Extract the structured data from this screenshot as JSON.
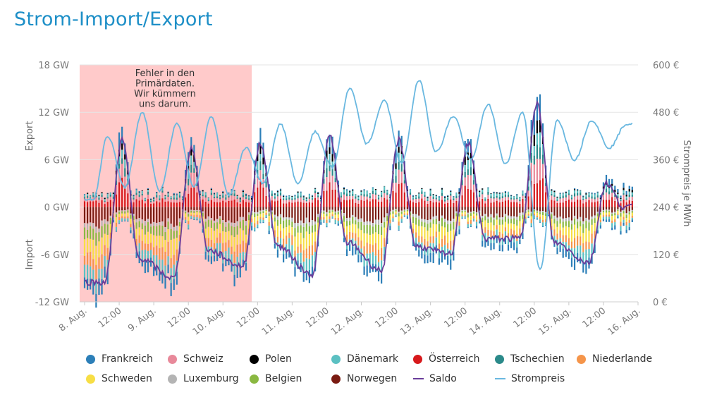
{
  "title": "Strom-Import/Export",
  "chart_data": {
    "type": "bar",
    "title": "Strom-Import/Export",
    "ylabel_top": "Export",
    "ylabel_bottom": "Import",
    "ylabel_right": "Strompreis je MWh",
    "ylim_left": [
      -12,
      18
    ],
    "ylim_right": [
      0,
      600
    ],
    "left_ticks": [
      "18 GW",
      "12 GW",
      "6 GW",
      "0 GW",
      "-6 GW",
      "-12 GW"
    ],
    "left_tick_values": [
      18,
      12,
      6,
      0,
      -6,
      -12
    ],
    "right_ticks": [
      "600 €",
      "480 €",
      "360 €",
      "240 €",
      "120 €",
      "0 €"
    ],
    "right_tick_values": [
      600,
      480,
      360,
      240,
      120,
      0
    ],
    "x_ticks": [
      "8. Aug.",
      "12:00",
      "9. Aug.",
      "12:00",
      "10. Aug.",
      "12:00",
      "11. Aug.",
      "12:00",
      "12. Aug.",
      "12:00",
      "13. Aug.",
      "12:00",
      "14. Aug.",
      "12:00",
      "15. Aug.",
      "12:00",
      "16. Aug."
    ],
    "x_tick_hours": [
      0,
      12,
      24,
      36,
      48,
      60,
      72,
      84,
      96,
      108,
      120,
      132,
      144,
      156,
      168,
      180,
      192
    ],
    "x_range_hours": [
      0,
      190
    ],
    "error_region": {
      "from_hours": 0,
      "to_hours": 58,
      "note": [
        "Fehler in den",
        "Primärdaten.",
        "Wir kümmern",
        "uns darum."
      ]
    },
    "saldo_peaks_gw": [
      {
        "hour": 7,
        "value": -9.5
      },
      {
        "hour": 13,
        "value": 8.5
      },
      {
        "hour": 19,
        "value": -6.5
      },
      {
        "hour": 31,
        "value": -9
      },
      {
        "hour": 37,
        "value": 7.5
      },
      {
        "hour": 43,
        "value": -5.5
      },
      {
        "hour": 55,
        "value": -7.5
      },
      {
        "hour": 61,
        "value": 8
      },
      {
        "hour": 67,
        "value": -5
      },
      {
        "hour": 79,
        "value": -8.5
      },
      {
        "hour": 85,
        "value": 9
      },
      {
        "hour": 91,
        "value": -4.5
      },
      {
        "hour": 103,
        "value": -8
      },
      {
        "hour": 109,
        "value": 8.5
      },
      {
        "hour": 115,
        "value": -5
      },
      {
        "hour": 127,
        "value": -6
      },
      {
        "hour": 133,
        "value": 8
      },
      {
        "hour": 139,
        "value": -4
      },
      {
        "hour": 151,
        "value": -4
      },
      {
        "hour": 157,
        "value": 13
      },
      {
        "hour": 163,
        "value": -4.5
      },
      {
        "hour": 175,
        "value": -7
      },
      {
        "hour": 181,
        "value": 3
      },
      {
        "hour": 187,
        "value": 0
      }
    ],
    "strompreis_peaks_eur": [
      {
        "hour": 3,
        "value": 260
      },
      {
        "hour": 8,
        "value": 420
      },
      {
        "hour": 14,
        "value": 290
      },
      {
        "hour": 20,
        "value": 480
      },
      {
        "hour": 26,
        "value": 280
      },
      {
        "hour": 32,
        "value": 450
      },
      {
        "hour": 38,
        "value": 290
      },
      {
        "hour": 44,
        "value": 470
      },
      {
        "hour": 50,
        "value": 270
      },
      {
        "hour": 56,
        "value": 390
      },
      {
        "hour": 62,
        "value": 300
      },
      {
        "hour": 68,
        "value": 450
      },
      {
        "hour": 74,
        "value": 300
      },
      {
        "hour": 80,
        "value": 430
      },
      {
        "hour": 86,
        "value": 340
      },
      {
        "hour": 92,
        "value": 540
      },
      {
        "hour": 98,
        "value": 400
      },
      {
        "hour": 104,
        "value": 510
      },
      {
        "hour": 110,
        "value": 350
      },
      {
        "hour": 116,
        "value": 560
      },
      {
        "hour": 122,
        "value": 380
      },
      {
        "hour": 128,
        "value": 470
      },
      {
        "hour": 134,
        "value": 360
      },
      {
        "hour": 140,
        "value": 500
      },
      {
        "hour": 146,
        "value": 350
      },
      {
        "hour": 152,
        "value": 480
      },
      {
        "hour": 158,
        "value": 80
      },
      {
        "hour": 164,
        "value": 460
      },
      {
        "hour": 170,
        "value": 360
      },
      {
        "hour": 176,
        "value": 460
      },
      {
        "hour": 182,
        "value": 390
      },
      {
        "hour": 188,
        "value": 450
      }
    ],
    "series": [
      {
        "name": "Frankreich",
        "color": "#2c7fb8"
      },
      {
        "name": "Schweiz",
        "color": "#e8899a"
      },
      {
        "name": "Polen",
        "color": "#000000"
      },
      {
        "name": "Dänemark",
        "color": "#5bc0c2"
      },
      {
        "name": "Österreich",
        "color": "#d7191c"
      },
      {
        "name": "Tschechien",
        "color": "#2b8a8a"
      },
      {
        "name": "Niederlande",
        "color": "#f5954a"
      },
      {
        "name": "Schweden",
        "color": "#f7de45"
      },
      {
        "name": "Luxemburg",
        "color": "#b4b4b4"
      },
      {
        "name": "Belgien",
        "color": "#8ab841"
      },
      {
        "name": "Norwegen",
        "color": "#7a1b12"
      },
      {
        "name": "Saldo",
        "color": "#6a3d9a",
        "kind": "line"
      },
      {
        "name": "Strompreis",
        "color": "#6ab8e0",
        "kind": "line"
      }
    ]
  }
}
